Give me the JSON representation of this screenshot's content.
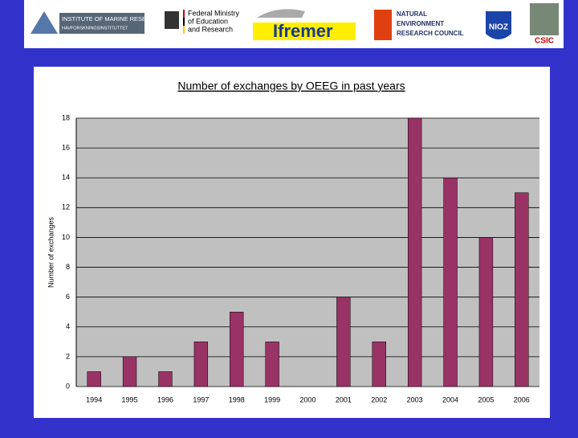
{
  "header": {
    "logos": [
      {
        "lines": [
          "INSTITUTE OF MARINE RESEARCH",
          "HAVFORSKNINGSINSTITUTTET"
        ]
      },
      {
        "lines": [
          "Federal Ministry",
          "of Education",
          "and Research"
        ]
      },
      {
        "lines": [
          "Ifremer"
        ]
      },
      {
        "lines": [
          "NATURAL",
          "ENVIRONMENT",
          "RESEARCH COUNCIL"
        ]
      },
      {
        "lines": [
          "NIOZ"
        ]
      },
      {
        "lines": [
          "CSIC"
        ]
      }
    ]
  },
  "chart_data": {
    "type": "bar",
    "title": "Number of exchanges by OEEG in past years",
    "y_label": "Number of exchanges",
    "categories": [
      "1994",
      "1995",
      "1996",
      "1997",
      "1998",
      "1999",
      "2000",
      "2001",
      "2002",
      "2003",
      "2004",
      "2005",
      "2006"
    ],
    "values": [
      1,
      2,
      1,
      3,
      5,
      3,
      0,
      6,
      3,
      18,
      14,
      10,
      13
    ],
    "color": "#993366",
    "ylim": [
      0,
      18
    ],
    "yticks": [
      0,
      2,
      4,
      6,
      8,
      10,
      12,
      14,
      16,
      18
    ],
    "grid": true
  }
}
